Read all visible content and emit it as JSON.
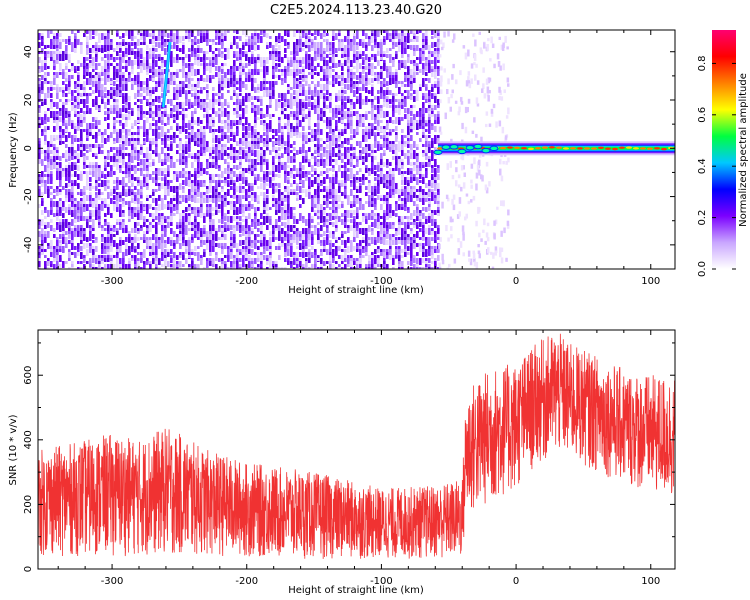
{
  "title": "C2E5.2024.113.23.40.G20",
  "chart_data": [
    {
      "type": "heatmap",
      "title": "C2E5.2024.113.23.40.G20",
      "xlabel": "Height of straight line (km)",
      "ylabel": "Frequency (Hz)",
      "xlim": [
        -355,
        118
      ],
      "ylim": [
        -50,
        49
      ],
      "xticks": [
        -300,
        -200,
        -100,
        0,
        100
      ],
      "yticks": [
        -40,
        -20,
        0,
        20,
        40
      ],
      "noise_region_x": [
        -355,
        -58
      ],
      "signal_region_x": [
        -58,
        118
      ],
      "signal_frequency_hz": 0,
      "colorbar": {
        "label": "Normalized spectral amplitude",
        "range": [
          0.0,
          0.93
        ],
        "ticks": [
          0.0,
          0.2,
          0.4,
          0.6,
          0.8
        ],
        "tick_labels": [
          "0.0",
          "0.2",
          "0.4",
          "0.6",
          "0.8"
        ],
        "colormap": [
          "#ffffff",
          "#c9a6ff",
          "#7b00ff",
          "#0000ff",
          "#00c8ff",
          "#00ff40",
          "#ffff00",
          "#ff8000",
          "#ff0000",
          "#ff0070"
        ]
      }
    },
    {
      "type": "line",
      "title": "",
      "xlabel": "Height of straight line (km)",
      "ylabel": "SNR (10 * v/v)",
      "xlim": [
        -355,
        118
      ],
      "ylim": [
        0,
        740
      ],
      "xticks": [
        -300,
        -200,
        -100,
        0,
        100
      ],
      "yticks": [
        0,
        200,
        400,
        600
      ],
      "series": [
        {
          "name": "SNR",
          "color": "#f03232",
          "envelope_x": [
            -355,
            -330,
            -300,
            -280,
            -260,
            -250,
            -230,
            -200,
            -150,
            -100,
            -60,
            -40,
            -37,
            -20,
            0,
            15,
            30,
            40,
            60,
            80,
            100,
            118
          ],
          "envelope_low": [
            40,
            40,
            40,
            40,
            40,
            40,
            40,
            35,
            30,
            30,
            30,
            30,
            150,
            200,
            240,
            320,
            350,
            340,
            300,
            260,
            230,
            210
          ],
          "envelope_high": [
            370,
            390,
            420,
            400,
            440,
            420,
            370,
            330,
            300,
            250,
            260,
            280,
            560,
            620,
            640,
            700,
            740,
            700,
            660,
            620,
            600,
            600
          ]
        }
      ]
    }
  ]
}
